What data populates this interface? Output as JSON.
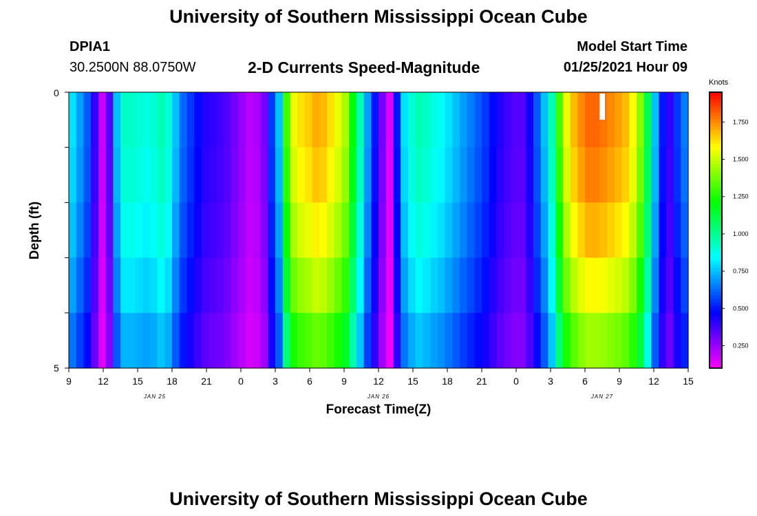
{
  "header": {
    "title": "University of Southern Mississippi Ocean Cube",
    "station": "DPIA1",
    "coords": "30.2500N 88.0750W",
    "plot_title": "2-D Currents Speed-Magnitude",
    "model_label": "Model Start Time",
    "model_time": "01/25/2021 Hour 09"
  },
  "footer": {
    "title": "University of Southern Mississippi Ocean Cube"
  },
  "colorbar": {
    "unit": "Knots",
    "ticks": [
      "0.250",
      "0.500",
      "0.750",
      "1.000",
      "1.250",
      "1.500",
      "1.750"
    ],
    "tick_values": [
      0.25,
      0.5,
      0.75,
      1.0,
      1.25,
      1.5,
      1.75
    ],
    "range": [
      0.1,
      1.95
    ]
  },
  "chart_data": {
    "type": "heatmap",
    "title": "2-D Currents Speed-Magnitude",
    "xlabel": "Forecast Time(Z)",
    "ylabel": "Depth (ft)",
    "ylim": [
      0,
      5
    ],
    "y_ticks": [
      "0",
      "5"
    ],
    "x_range_hours": [
      0,
      54
    ],
    "x_ticks": [
      "9",
      "12",
      "15",
      "18",
      "21",
      "0",
      "3",
      "6",
      "9",
      "12",
      "15",
      "18",
      "21",
      "0",
      "3",
      "6",
      "9",
      "12",
      "15"
    ],
    "date_labels": [
      "JAN 25",
      "JAN 26",
      "JAN 27"
    ],
    "date_label_hours": [
      7.5,
      27,
      46.5
    ],
    "depth_levels_ft": [
      0,
      1,
      2,
      3,
      4
    ],
    "speed_profile_surface_knots": [
      0.8,
      0.7,
      0.6,
      0.4,
      0.18,
      0.35,
      0.75,
      0.92,
      0.92,
      0.9,
      0.88,
      0.9,
      0.95,
      0.9,
      0.75,
      0.62,
      0.55,
      0.48,
      0.42,
      0.4,
      0.38,
      0.35,
      0.3,
      0.25,
      0.2,
      0.22,
      0.3,
      0.55,
      0.75,
      1.3,
      1.55,
      1.62,
      1.65,
      1.7,
      1.68,
      1.62,
      1.55,
      1.45,
      1.2,
      0.95,
      0.7,
      0.5,
      0.3,
      0.15,
      0.5,
      0.8,
      0.9,
      0.95,
      0.92,
      0.88,
      0.85,
      0.8,
      0.75,
      0.7,
      0.65,
      0.6,
      0.55,
      0.48,
      0.42,
      0.38,
      0.35,
      0.35,
      0.45,
      0.6,
      0.75,
      0.95,
      1.3,
      1.55,
      1.68,
      1.75,
      1.8,
      1.8,
      1.78,
      1.75,
      1.72,
      1.68,
      1.58,
      1.4,
      1.1,
      0.75,
      0.5,
      0.4,
      0.55,
      0.65
    ],
    "depth_factors": [
      1.0,
      0.98,
      0.94,
      0.88,
      0.8
    ],
    "peak_marker_hour": 46.5
  }
}
